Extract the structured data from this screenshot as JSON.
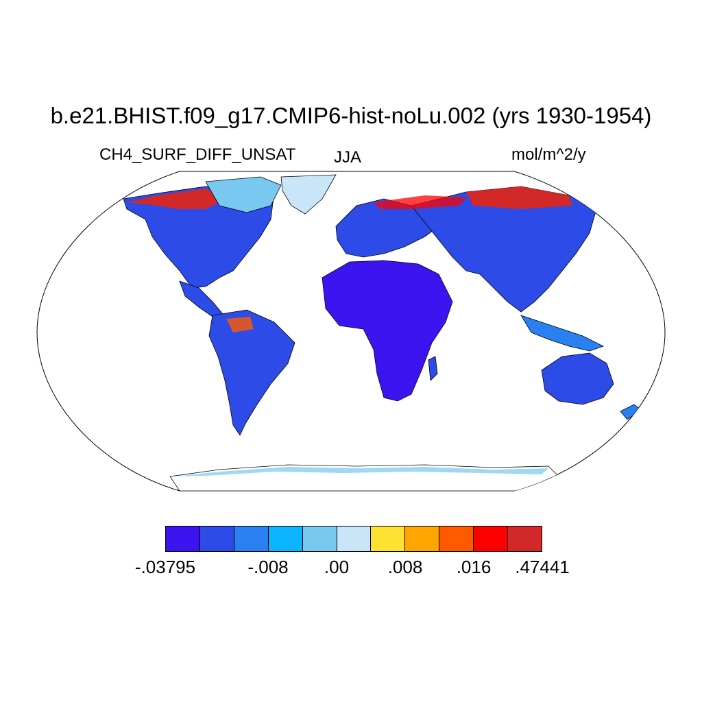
{
  "title": "b.e21.BHIST.f09_g17.CMIP6-hist-noLu.002 (yrs 1930-1954)",
  "variable": "CH4_SURF_DIFF_UNSAT",
  "season": "JJA",
  "units": "mol/m^2/y",
  "colorbar": {
    "colors": [
      "#3c14f0",
      "#2d4be6",
      "#2a80f0",
      "#0ab4ff",
      "#78c8f0",
      "#c8e6f8",
      "#ffe132",
      "#ffa500",
      "#ff5a00",
      "#ff0000",
      "#d22828"
    ],
    "labels": [
      {
        "text": "-.03795",
        "boundary": 0
      },
      {
        "text": "-.008",
        "boundary": 3
      },
      {
        "text": ".00",
        "boundary": 5
      },
      {
        "text": ".008",
        "boundary": 7
      },
      {
        "text": ".016",
        "boundary": 9
      },
      {
        "text": ".47441",
        "boundary": 11
      }
    ]
  }
}
